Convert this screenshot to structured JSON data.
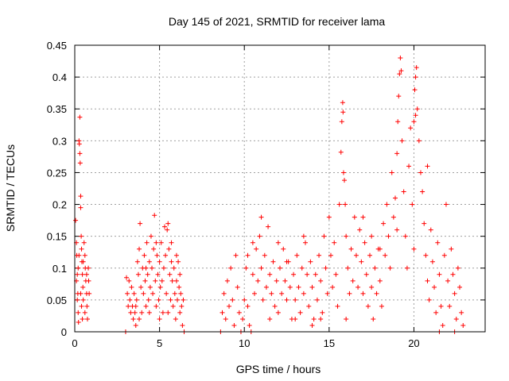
{
  "chart_data": {
    "type": "scatter",
    "title": "Day 145 of 2021, SRMTID for receiver lama",
    "xlabel": "GPS time / hours",
    "ylabel": "SRMTID / TECUs",
    "xlim": [
      0,
      24.2
    ],
    "ylim": [
      0,
      0.45
    ],
    "xticks": [
      0,
      5,
      10,
      15,
      20
    ],
    "xtick_labels": [
      "0",
      "5",
      "10",
      "15",
      "20"
    ],
    "yticks": [
      0,
      0.05,
      0.1,
      0.15,
      0.2,
      0.25,
      0.3,
      0.35,
      0.4,
      0.45
    ],
    "ytick_labels": [
      "0",
      "0.05",
      "0.1",
      "0.15",
      "0.2",
      "0.25",
      "0.3",
      "0.35",
      "0.4",
      "0.45"
    ],
    "grid": true,
    "marker": "plus",
    "series_color": "#ff0000",
    "series": [
      {
        "name": "SRMTID",
        "points": [
          [
            0.05,
            0.175
          ],
          [
            0.1,
            0.14
          ],
          [
            0.12,
            0.12
          ],
          [
            0.15,
            0.09
          ],
          [
            0.18,
            0.06
          ],
          [
            0.2,
            0.03
          ],
          [
            0.22,
            0.015
          ],
          [
            0.25,
            0.3
          ],
          [
            0.27,
            0.295
          ],
          [
            0.3,
            0.28
          ],
          [
            0.32,
            0.265
          ],
          [
            0.3,
            0.337
          ],
          [
            0.35,
            0.213
          ],
          [
            0.35,
            0.195
          ],
          [
            0.38,
            0.15
          ],
          [
            0.4,
            0.13
          ],
          [
            0.42,
            0.11
          ],
          [
            0.45,
            0.09
          ],
          [
            0.48,
            0.07
          ],
          [
            0.5,
            0.05
          ],
          [
            0.55,
            0.14
          ],
          [
            0.6,
            0.12
          ],
          [
            0.62,
            0.1
          ],
          [
            0.65,
            0.08
          ],
          [
            0.7,
            0.06
          ],
          [
            0.72,
            0.04
          ],
          [
            0.75,
            0.02
          ],
          [
            0.8,
            0.1
          ],
          [
            0.82,
            0.08
          ],
          [
            0.85,
            0.06
          ],
          [
            0.1,
            0.08
          ],
          [
            0.15,
            0.05
          ],
          [
            0.2,
            0.1
          ],
          [
            0.25,
            0.12
          ],
          [
            0.35,
            0.06
          ],
          [
            0.4,
            0.04
          ],
          [
            0.45,
            0.02
          ],
          [
            0.5,
            0.11
          ],
          [
            0.6,
            0.03
          ],
          [
            0.7,
            0.09
          ],
          [
            3.0,
            0.0
          ],
          [
            3.05,
            0.085
          ],
          [
            3.1,
            0.06
          ],
          [
            3.15,
            0.04
          ],
          [
            3.2,
            0.08
          ],
          [
            3.25,
            0.05
          ],
          [
            3.3,
            0.03
          ],
          [
            3.35,
            0.07
          ],
          [
            3.4,
            0.04
          ],
          [
            3.45,
            0.02
          ],
          [
            3.5,
            0.06
          ],
          [
            3.55,
            0.03
          ],
          [
            3.6,
            0.01
          ],
          [
            3.65,
            0.05
          ],
          [
            3.7,
            0.11
          ],
          [
            3.75,
            0.09
          ],
          [
            3.8,
            0.13
          ],
          [
            3.85,
            0.17
          ],
          [
            3.9,
            0.07
          ],
          [
            3.95,
            0.03
          ],
          [
            4.0,
            0.1
          ],
          [
            4.05,
            0.06
          ],
          [
            4.1,
            0.12
          ],
          [
            4.15,
            0.08
          ],
          [
            4.2,
            0.04
          ],
          [
            4.25,
            0.14
          ],
          [
            4.3,
            0.09
          ],
          [
            4.35,
            0.05
          ],
          [
            4.4,
            0.11
          ],
          [
            4.45,
            0.07
          ],
          [
            4.5,
            0.15
          ],
          [
            4.55,
            0.1
          ],
          [
            4.6,
            0.06
          ],
          [
            4.65,
            0.13
          ],
          [
            4.7,
            0.183
          ],
          [
            4.75,
            0.08
          ],
          [
            4.8,
            0.04
          ],
          [
            4.85,
            0.12
          ],
          [
            4.9,
            0.09
          ],
          [
            4.95,
            0.05
          ],
          [
            5.0,
            0.11
          ],
          [
            5.05,
            0.07
          ],
          [
            5.1,
            0.14
          ],
          [
            5.15,
            0.08
          ],
          [
            5.2,
            0.03
          ],
          [
            5.25,
            0.1
          ],
          [
            5.3,
            0.165
          ],
          [
            5.35,
            0.12
          ],
          [
            5.4,
            0.06
          ],
          [
            5.45,
            0.16
          ],
          [
            5.5,
            0.17
          ],
          [
            5.55,
            0.13
          ],
          [
            5.6,
            0.09
          ],
          [
            5.65,
            0.05
          ],
          [
            5.7,
            0.11
          ],
          [
            5.75,
            0.08
          ],
          [
            5.8,
            0.04
          ],
          [
            5.85,
            0.1
          ],
          [
            5.9,
            0.06
          ],
          [
            5.95,
            0.02
          ],
          [
            6.0,
            0.08
          ],
          [
            6.05,
            0.05
          ],
          [
            6.1,
            0.11
          ],
          [
            6.15,
            0.07
          ],
          [
            6.2,
            0.03
          ],
          [
            6.25,
            0.06
          ],
          [
            6.3,
            0.04
          ],
          [
            6.35,
            0.01
          ],
          [
            6.4,
            0.05
          ],
          [
            6.45,
            0.0
          ],
          [
            3.6,
            0.04
          ],
          [
            3.8,
            0.02
          ],
          [
            4.2,
            0.1
          ],
          [
            4.4,
            0.03
          ],
          [
            4.8,
            0.14
          ],
          [
            5.0,
            0.02
          ],
          [
            5.5,
            0.03
          ],
          [
            5.7,
            0.14
          ],
          [
            6.0,
            0.12
          ],
          [
            6.2,
            0.09
          ],
          [
            8.6,
            0.0
          ],
          [
            8.7,
            0.03
          ],
          [
            8.8,
            0.06
          ],
          [
            8.9,
            0.02
          ],
          [
            9.0,
            0.08
          ],
          [
            9.1,
            0.04
          ],
          [
            9.2,
            0.1
          ],
          [
            9.3,
            0.05
          ],
          [
            9.4,
            0.01
          ],
          [
            9.5,
            0.12
          ],
          [
            9.6,
            0.07
          ],
          [
            9.7,
            0.03
          ],
          [
            9.8,
            0.0
          ],
          [
            9.9,
            0.02
          ],
          [
            10.0,
            0.05
          ],
          [
            10.1,
            0.1
          ],
          [
            10.2,
            0.04
          ],
          [
            10.3,
            0.01
          ],
          [
            10.4,
            0.0
          ],
          [
            10.5,
            0.09
          ],
          [
            10.6,
            0.06
          ],
          [
            10.7,
            0.13
          ],
          [
            10.8,
            0.08
          ],
          [
            10.9,
            0.15
          ],
          [
            11.0,
            0.1
          ],
          [
            11.1,
            0.05
          ],
          [
            11.2,
            0.12
          ],
          [
            11.3,
            0.07
          ],
          [
            11.4,
            0.165
          ],
          [
            11.5,
            0.09
          ],
          [
            11.6,
            0.06
          ],
          [
            11.7,
            0.11
          ],
          [
            11.8,
            0.04
          ],
          [
            11.9,
            0.08
          ],
          [
            12.0,
            0.03
          ],
          [
            12.1,
            0.1
          ],
          [
            12.2,
            0.06
          ],
          [
            12.3,
            0.13
          ],
          [
            12.4,
            0.08
          ],
          [
            12.5,
            0.05
          ],
          [
            12.6,
            0.11
          ],
          [
            12.7,
            0.07
          ],
          [
            12.8,
            0.02
          ],
          [
            12.9,
            0.09
          ],
          [
            13.0,
            0.05
          ],
          [
            13.1,
            0.12
          ],
          [
            13.2,
            0.07
          ],
          [
            13.3,
            0.03
          ],
          [
            13.4,
            0.1
          ],
          [
            13.5,
            0.06
          ],
          [
            13.6,
            0.14
          ],
          [
            13.7,
            0.09
          ],
          [
            13.8,
            0.04
          ],
          [
            13.9,
            0.11
          ],
          [
            14.0,
            0.07
          ],
          [
            14.1,
            0.02
          ],
          [
            14.2,
            0.09
          ],
          [
            14.3,
            0.05
          ],
          [
            14.4,
            0.12
          ],
          [
            14.5,
            0.08
          ],
          [
            14.6,
            0.03
          ],
          [
            14.7,
            0.15
          ],
          [
            14.8,
            0.1
          ],
          [
            14.9,
            0.06
          ],
          [
            10.2,
            0.12
          ],
          [
            10.5,
            0.14
          ],
          [
            11.0,
            0.18
          ],
          [
            11.5,
            0.02
          ],
          [
            12.0,
            0.14
          ],
          [
            12.5,
            0.11
          ],
          [
            13.0,
            0.02
          ],
          [
            13.5,
            0.15
          ],
          [
            14.0,
            0.01
          ],
          [
            14.5,
            0.02
          ],
          [
            15.0,
            0.18
          ],
          [
            15.1,
            0.12
          ],
          [
            15.2,
            0.07
          ],
          [
            15.3,
            0.14
          ],
          [
            15.4,
            0.09
          ],
          [
            15.5,
            0.04
          ],
          [
            15.6,
            0.2
          ],
          [
            15.7,
            0.282
          ],
          [
            15.75,
            0.33
          ],
          [
            15.8,
            0.36
          ],
          [
            15.82,
            0.345
          ],
          [
            15.85,
            0.25
          ],
          [
            15.9,
            0.238
          ],
          [
            15.95,
            0.2
          ],
          [
            16.0,
            0.15
          ],
          [
            16.1,
            0.1
          ],
          [
            16.2,
            0.06
          ],
          [
            16.3,
            0.13
          ],
          [
            16.4,
            0.08
          ],
          [
            16.5,
            0.18
          ],
          [
            16.6,
            0.12
          ],
          [
            16.7,
            0.07
          ],
          [
            16.8,
            0.16
          ],
          [
            16.9,
            0.11
          ],
          [
            17.0,
            0.06
          ],
          [
            17.1,
            0.14
          ],
          [
            17.2,
            0.09
          ],
          [
            17.3,
            0.04
          ],
          [
            17.4,
            0.12
          ],
          [
            17.5,
            0.07
          ],
          [
            17.6,
            0.02
          ],
          [
            17.7,
            0.1
          ],
          [
            17.8,
            0.06
          ],
          [
            17.9,
            0.13
          ],
          [
            18.0,
            0.08
          ],
          [
            18.1,
            0.04
          ],
          [
            18.2,
            0.17
          ],
          [
            18.3,
            0.12
          ],
          [
            18.4,
            0.2
          ],
          [
            18.5,
            0.15
          ],
          [
            18.6,
            0.1
          ],
          [
            18.7,
            0.25
          ],
          [
            18.8,
            0.18
          ],
          [
            18.9,
            0.21
          ],
          [
            19.0,
            0.28
          ],
          [
            19.05,
            0.33
          ],
          [
            19.1,
            0.37
          ],
          [
            19.15,
            0.405
          ],
          [
            19.2,
            0.43
          ],
          [
            19.25,
            0.41
          ],
          [
            19.3,
            0.3
          ],
          [
            19.4,
            0.22
          ],
          [
            19.5,
            0.15
          ],
          [
            19.6,
            0.1
          ],
          [
            19.7,
            0.26
          ],
          [
            19.8,
            0.32
          ],
          [
            19.9,
            0.2
          ],
          [
            20.0,
            0.13
          ],
          [
            20.05,
            0.38
          ],
          [
            20.1,
            0.4
          ],
          [
            20.15,
            0.415
          ],
          [
            20.2,
            0.35
          ],
          [
            20.3,
            0.3
          ],
          [
            20.4,
            0.25
          ],
          [
            20.5,
            0.22
          ],
          [
            20.6,
            0.17
          ],
          [
            20.7,
            0.12
          ],
          [
            20.8,
            0.08
          ],
          [
            20.9,
            0.05
          ],
          [
            21.0,
            0.16
          ],
          [
            21.1,
            0.11
          ],
          [
            21.2,
            0.07
          ],
          [
            21.3,
            0.03
          ],
          [
            21.4,
            0.14
          ],
          [
            21.5,
            0.09
          ],
          [
            21.6,
            0.04
          ],
          [
            21.7,
            0.01
          ],
          [
            21.8,
            0.12
          ],
          [
            21.9,
            0.2
          ],
          [
            22.0,
            0.08
          ],
          [
            22.1,
            0.04
          ],
          [
            22.2,
            0.13
          ],
          [
            22.3,
            0.09
          ],
          [
            22.4,
            0.06
          ],
          [
            22.5,
            0.02
          ],
          [
            22.6,
            0.1
          ],
          [
            22.7,
            0.07
          ],
          [
            22.8,
            0.03
          ],
          [
            22.9,
            0.01
          ],
          [
            22.4,
            0.0
          ],
          [
            21.5,
            0.0
          ],
          [
            20.0,
            0.33
          ],
          [
            20.1,
            0.34
          ],
          [
            19.0,
            0.16
          ],
          [
            18.0,
            0.13
          ],
          [
            17.0,
            0.18
          ],
          [
            16.0,
            0.02
          ],
          [
            17.5,
            0.15
          ],
          [
            20.8,
            0.26
          ]
        ]
      }
    ]
  }
}
